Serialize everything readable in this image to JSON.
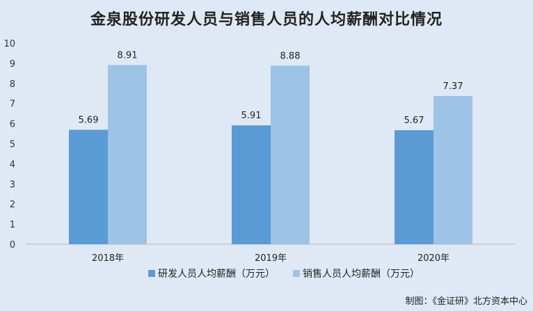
{
  "chart_data": {
    "type": "bar",
    "title": "金泉股份研发人员与销售人员的人均薪酬对比情况",
    "categories": [
      "2018年",
      "2019年",
      "2020年"
    ],
    "series": [
      {
        "name": "研发人员人均薪酬（万元）",
        "values": [
          5.69,
          5.91,
          5.67
        ],
        "color": "#5b9bd5"
      },
      {
        "name": "销售人员人均薪酬（万元）",
        "values": [
          8.91,
          8.88,
          7.37
        ],
        "color": "#9dc3e6"
      }
    ],
    "ylim": [
      0,
      10
    ],
    "yticks": [
      0,
      1,
      2,
      3,
      4,
      5,
      6,
      7,
      8,
      9,
      10
    ],
    "xlabel": "",
    "ylabel": "",
    "grid": false,
    "legend_position": "bottom"
  },
  "source": "制图：《金证研》北方资本中心"
}
